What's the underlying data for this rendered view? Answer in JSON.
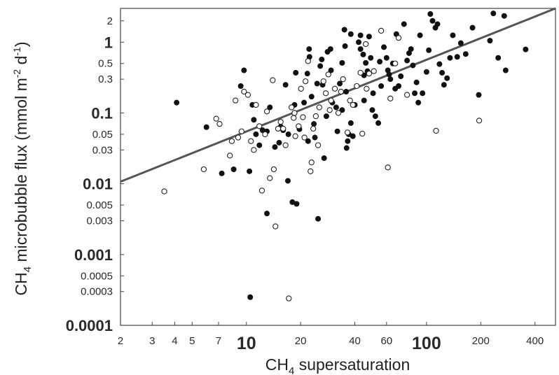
{
  "chart_data": {
    "type": "scatter",
    "title": "",
    "xlabel": {
      "pre": "CH",
      "sub": "4",
      "post": " supersaturation"
    },
    "ylabel": {
      "pre": "CH",
      "sub": "4",
      "mid": " microbubble flux (mmol m",
      "sup1": "-2",
      "mid2": " d",
      "sup2": "-1",
      "post": ")"
    },
    "x_scale": "log",
    "y_scale": "log",
    "xlim": [
      2,
      520
    ],
    "ylim": [
      0.0001,
      3
    ],
    "x_ticks": [
      {
        "v": 2,
        "label": "2",
        "major": false
      },
      {
        "v": 3,
        "label": "3",
        "major": false
      },
      {
        "v": 4,
        "label": "4",
        "major": false
      },
      {
        "v": 5,
        "label": "5",
        "major": false
      },
      {
        "v": 7,
        "label": "7",
        "major": false
      },
      {
        "v": 10,
        "label": "10",
        "major": true
      },
      {
        "v": 20,
        "label": "20",
        "major": false
      },
      {
        "v": 40,
        "label": "40",
        "major": false
      },
      {
        "v": 60,
        "label": "60",
        "major": false
      },
      {
        "v": 100,
        "label": "100",
        "major": true
      },
      {
        "v": 200,
        "label": "200",
        "major": false
      },
      {
        "v": 400,
        "label": "400",
        "major": false
      }
    ],
    "y_ticks": [
      {
        "v": 2,
        "label": "2",
        "major": false
      },
      {
        "v": 1,
        "label": "1",
        "major": true
      },
      {
        "v": 0.5,
        "label": "0.5",
        "major": false
      },
      {
        "v": 0.3,
        "label": "0.3",
        "major": false
      },
      {
        "v": 0.1,
        "label": "0.1",
        "major": true
      },
      {
        "v": 0.05,
        "label": "0.05",
        "major": false
      },
      {
        "v": 0.03,
        "label": "0.03",
        "major": false
      },
      {
        "v": 0.01,
        "label": "0.01",
        "major": true
      },
      {
        "v": 0.005,
        "label": "0.005",
        "major": false
      },
      {
        "v": 0.003,
        "label": "0.003",
        "major": false
      },
      {
        "v": 0.001,
        "label": "0.001",
        "major": true
      },
      {
        "v": 0.0005,
        "label": "0.0005",
        "major": false
      },
      {
        "v": 0.0003,
        "label": "0.0003",
        "major": false
      },
      {
        "v": 0.0001,
        "label": "0.0001",
        "major": true
      }
    ],
    "grid": false,
    "regression_line": {
      "x": [
        2,
        520
      ],
      "y": [
        0.0107,
        3.0
      ]
    },
    "series": [
      {
        "marker": "filled",
        "color": "#111111",
        "points": [
          [
            4.1,
            0.14
          ],
          [
            6.0,
            0.063
          ],
          [
            7.3,
            0.014
          ],
          [
            8.5,
            0.016
          ],
          [
            9.3,
            0.24
          ],
          [
            9.7,
            0.4
          ],
          [
            10.4,
            0.015
          ],
          [
            10.8,
            0.13
          ],
          [
            11.0,
            0.08
          ],
          [
            11.3,
            0.05
          ],
          [
            12.3,
            0.057
          ],
          [
            13.0,
            0.055
          ],
          [
            13.5,
            0.12
          ],
          [
            14.4,
            0.033
          ],
          [
            15.5,
            0.064
          ],
          [
            16.5,
            0.25
          ],
          [
            17.1,
            0.05
          ],
          [
            18.5,
            0.13
          ],
          [
            18.8,
            0.37
          ],
          [
            19.7,
            0.059
          ],
          [
            20.9,
            0.14
          ],
          [
            21.8,
            0.36
          ],
          [
            22.3,
            0.8
          ],
          [
            22.4,
            0.62
          ],
          [
            23.0,
            0.17
          ],
          [
            23.7,
            0.07
          ],
          [
            24.7,
            0.26
          ],
          [
            25.7,
            0.46
          ],
          [
            26.2,
            0.57
          ],
          [
            26.5,
            0.25
          ],
          [
            27.8,
            0.09
          ],
          [
            28.2,
            0.73
          ],
          [
            29.3,
            0.8
          ],
          [
            29.5,
            0.4
          ],
          [
            30.0,
            0.14
          ],
          [
            31.5,
            0.12
          ],
          [
            32.0,
            0.055
          ],
          [
            33.0,
            0.26
          ],
          [
            34.0,
            0.51
          ],
          [
            35.0,
            1.5
          ],
          [
            35.3,
            0.88
          ],
          [
            35.8,
            0.2
          ],
          [
            36.5,
            0.04
          ],
          [
            37.0,
            0.05
          ],
          [
            38.0,
            1.3
          ],
          [
            40.0,
            0.13
          ],
          [
            42.0,
            1.0
          ],
          [
            43.0,
            1.25
          ],
          [
            44.5,
            0.67
          ],
          [
            46.0,
            0.51
          ],
          [
            47.0,
            0.39
          ],
          [
            48.0,
            1.2
          ],
          [
            50.0,
            0.11
          ],
          [
            50.5,
            0.19
          ],
          [
            52.0,
            0.09
          ],
          [
            54.0,
            0.072
          ],
          [
            56.0,
            0.24
          ],
          [
            58.0,
            0.85
          ],
          [
            60.0,
            0.6
          ],
          [
            61.0,
            0.4
          ],
          [
            63.0,
            0.3
          ],
          [
            65.0,
            0.5
          ],
          [
            68.0,
            1.3
          ],
          [
            70.0,
            0.24
          ],
          [
            72.0,
            0.33
          ],
          [
            75.0,
            1.8
          ],
          [
            78.0,
            0.55
          ],
          [
            80.0,
            0.7
          ],
          [
            82.0,
            0.8
          ],
          [
            84.0,
            0.47
          ],
          [
            86.0,
            0.19
          ],
          [
            88.0,
            0.27
          ],
          [
            92.0,
            1.25
          ],
          [
            95.0,
            0.19
          ],
          [
            100.0,
            0.38
          ],
          [
            103.0,
            0.77
          ],
          [
            105.0,
            2.5
          ],
          [
            108.0,
            2.0
          ],
          [
            112.0,
            1.6
          ],
          [
            115.0,
            1.8
          ],
          [
            118.0,
            0.49
          ],
          [
            122.0,
            0.37
          ],
          [
            125.0,
            0.25
          ],
          [
            130.0,
            0.31
          ],
          [
            135.0,
            0.6
          ],
          [
            140.0,
            1.25
          ],
          [
            148.0,
            0.62
          ],
          [
            155.0,
            0.97
          ],
          [
            165.0,
            0.68
          ],
          [
            180.0,
            1.6
          ],
          [
            195.0,
            0.18
          ],
          [
            225.0,
            1.05
          ],
          [
            235.0,
            2.55
          ],
          [
            250.0,
            0.6
          ],
          [
            270.0,
            2.35
          ],
          [
            275.0,
            0.4
          ],
          [
            355.0,
            0.79
          ],
          [
            10.5,
            0.00025
          ],
          [
            13.0,
            0.0038
          ],
          [
            17.0,
            0.011
          ],
          [
            18.0,
            0.0055
          ],
          [
            19.0,
            0.0052
          ],
          [
            22.0,
            0.04
          ],
          [
            25.0,
            0.0032
          ],
          [
            24.0,
            0.045
          ],
          [
            34.0,
            0.11
          ],
          [
            38.0,
            0.072
          ],
          [
            39.0,
            0.047
          ],
          [
            45.0,
            0.15
          ],
          [
            55.0,
            0.53
          ],
          [
            62.0,
            0.35
          ],
          [
            67.0,
            0.22
          ],
          [
            90.0,
            0.14
          ],
          [
            27.0,
            0.023
          ],
          [
            36.0,
            0.032
          ],
          [
            15.2,
            0.038
          ],
          [
            16.0,
            0.057
          ],
          [
            11.8,
            0.035
          ],
          [
            45.0,
            0.34
          ],
          [
            43.0,
            0.8
          ],
          [
            49.0,
            0.6
          ]
        ]
      },
      {
        "marker": "open",
        "color": "#222222",
        "points": [
          [
            3.5,
            0.0078
          ],
          [
            5.8,
            0.016
          ],
          [
            6.8,
            0.083
          ],
          [
            7.1,
            0.07
          ],
          [
            8.1,
            0.025
          ],
          [
            8.3,
            0.04
          ],
          [
            8.7,
            0.15
          ],
          [
            9.0,
            0.045
          ],
          [
            9.4,
            0.055
          ],
          [
            9.7,
            0.2
          ],
          [
            10.2,
            0.18
          ],
          [
            10.6,
            0.04
          ],
          [
            11.0,
            0.03
          ],
          [
            11.3,
            0.13
          ],
          [
            11.8,
            0.065
          ],
          [
            12.2,
            0.008
          ],
          [
            12.7,
            0.05
          ],
          [
            13.5,
            0.012
          ],
          [
            14.2,
            0.016
          ],
          [
            14.5,
            0.0025
          ],
          [
            15.0,
            0.06
          ],
          [
            15.5,
            0.075
          ],
          [
            16.0,
            0.06
          ],
          [
            16.5,
            0.035
          ],
          [
            17.2,
            0.00024
          ],
          [
            17.8,
            0.12
          ],
          [
            18.3,
            0.085
          ],
          [
            18.7,
            0.047
          ],
          [
            19.5,
            0.065
          ],
          [
            20.1,
            0.22
          ],
          [
            20.6,
            0.087
          ],
          [
            21.3,
            0.28
          ],
          [
            22.0,
            0.54
          ],
          [
            22.7,
            0.015
          ],
          [
            23.5,
            0.06
          ],
          [
            24.3,
            0.09
          ],
          [
            25.0,
            0.035
          ],
          [
            25.4,
            0.12
          ],
          [
            26.8,
            0.28
          ],
          [
            27.6,
            0.19
          ],
          [
            28.5,
            0.35
          ],
          [
            29.5,
            0.15
          ],
          [
            31.0,
            0.22
          ],
          [
            32.4,
            0.1
          ],
          [
            33.5,
            0.2
          ],
          [
            34.4,
            0.3
          ],
          [
            36.4,
            0.053
          ],
          [
            37.6,
            0.15
          ],
          [
            39.0,
            0.13
          ],
          [
            41.0,
            0.24
          ],
          [
            43.0,
            0.37
          ],
          [
            44.0,
            0.051
          ],
          [
            46.5,
            0.22
          ],
          [
            48.0,
            0.36
          ],
          [
            51.0,
            0.39
          ],
          [
            56.0,
            1.45
          ],
          [
            61.0,
            0.017
          ],
          [
            63.0,
            0.16
          ],
          [
            67.0,
            0.5
          ],
          [
            70.0,
            1.15
          ],
          [
            78.0,
            0.18
          ],
          [
            113.0,
            0.056
          ],
          [
            196.0,
            0.078
          ],
          [
            14.0,
            0.29
          ],
          [
            18.5,
            0.1
          ],
          [
            21.0,
            0.045
          ],
          [
            23.0,
            0.02
          ],
          [
            29.0,
            0.11
          ],
          [
            46.0,
            0.94
          ],
          [
            13.0,
            0.105
          ]
        ]
      }
    ]
  }
}
